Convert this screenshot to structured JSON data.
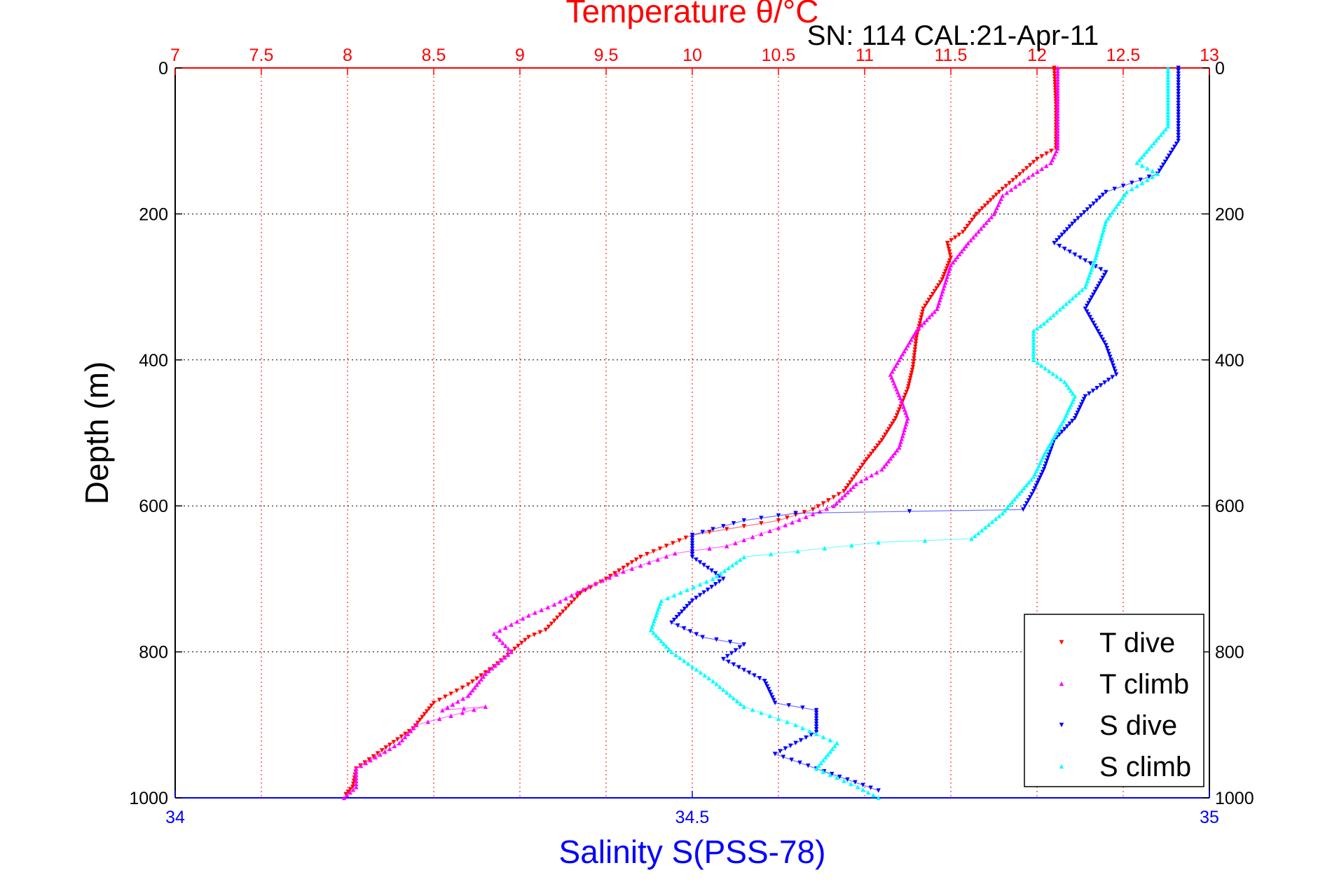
{
  "chart_data": {
    "type": "scatter",
    "title": "Temperature θ/°C",
    "subtitle": "SN: 114  CAL:21-Apr-11",
    "xlabel_top": "Temperature θ/°C",
    "xlabel_bottom": "Salinity S(PSS-78)",
    "ylabel": "Depth (m)",
    "ylim": [
      1000,
      0
    ],
    "xlim_top": [
      7,
      13
    ],
    "xlim_bottom": [
      34,
      35
    ],
    "y_ticks": [
      "0",
      "200",
      "400",
      "600",
      "800",
      "1000"
    ],
    "y_tick_values": [
      0,
      200,
      400,
      600,
      800,
      1000
    ],
    "x_top_ticks": [
      "7",
      "7.5",
      "8",
      "8.5",
      "9",
      "9.5",
      "10",
      "10.5",
      "11",
      "11.5",
      "12",
      "12.5",
      "13"
    ],
    "x_top_tick_values": [
      7,
      7.5,
      8,
      8.5,
      9,
      9.5,
      10,
      10.5,
      11,
      11.5,
      12,
      12.5,
      13
    ],
    "x_bottom_ticks": [
      "34",
      "34.5",
      "35"
    ],
    "x_bottom_tick_values": [
      34,
      34.5,
      35
    ],
    "grid": true,
    "legend_position": "bottom-right",
    "series": [
      {
        "name": "T dive",
        "axis": "top",
        "color": "#ff0000",
        "marker": "triangle-down",
        "points": [
          [
            12.1,
            0
          ],
          [
            12.11,
            50
          ],
          [
            12.11,
            110
          ],
          [
            12.0,
            125
          ],
          [
            11.88,
            150
          ],
          [
            11.78,
            170
          ],
          [
            11.65,
            200
          ],
          [
            11.57,
            225
          ],
          [
            11.48,
            240
          ],
          [
            11.5,
            260
          ],
          [
            11.45,
            290
          ],
          [
            11.34,
            330
          ],
          [
            11.3,
            370
          ],
          [
            11.28,
            410
          ],
          [
            11.25,
            440
          ],
          [
            11.18,
            480
          ],
          [
            11.1,
            510
          ],
          [
            11.0,
            540
          ],
          [
            10.88,
            580
          ],
          [
            10.7,
            605
          ],
          [
            10.5,
            620
          ],
          [
            10.3,
            628
          ],
          [
            10.0,
            640
          ],
          [
            9.7,
            670
          ],
          [
            9.5,
            700
          ],
          [
            9.35,
            720
          ],
          [
            9.25,
            745
          ],
          [
            9.15,
            770
          ],
          [
            9.05,
            780
          ],
          [
            8.95,
            800
          ],
          [
            8.85,
            820
          ],
          [
            8.7,
            845
          ],
          [
            8.5,
            870
          ],
          [
            8.38,
            905
          ],
          [
            8.2,
            935
          ],
          [
            8.05,
            960
          ],
          [
            8.03,
            985
          ],
          [
            7.99,
            995
          ]
        ]
      },
      {
        "name": "T climb",
        "axis": "top",
        "color": "#ff00ff",
        "marker": "triangle-up",
        "points": [
          [
            12.12,
            0
          ],
          [
            12.12,
            50
          ],
          [
            12.12,
            110
          ],
          [
            12.08,
            130
          ],
          [
            11.95,
            150
          ],
          [
            11.8,
            175
          ],
          [
            11.75,
            200
          ],
          [
            11.6,
            240
          ],
          [
            11.5,
            270
          ],
          [
            11.42,
            330
          ],
          [
            11.3,
            360
          ],
          [
            11.25,
            380
          ],
          [
            11.15,
            420
          ],
          [
            11.22,
            460
          ],
          [
            11.25,
            480
          ],
          [
            11.2,
            520
          ],
          [
            11.1,
            550
          ],
          [
            10.95,
            570
          ],
          [
            10.82,
            600
          ],
          [
            10.5,
            630
          ],
          [
            10.2,
            655
          ],
          [
            9.9,
            665
          ],
          [
            9.6,
            690
          ],
          [
            9.4,
            710
          ],
          [
            9.2,
            735
          ],
          [
            9.05,
            750
          ],
          [
            8.85,
            775
          ],
          [
            8.95,
            800
          ],
          [
            8.8,
            830
          ],
          [
            8.7,
            860
          ],
          [
            8.55,
            880
          ],
          [
            8.8,
            875
          ],
          [
            8.4,
            900
          ],
          [
            8.3,
            925
          ],
          [
            8.05,
            960
          ],
          [
            8.05,
            985
          ],
          [
            7.98,
            1000
          ]
        ]
      },
      {
        "name": "S dive",
        "axis": "bottom",
        "color": "#0000ff",
        "marker": "triangle-down",
        "points": [
          [
            34.97,
            0
          ],
          [
            34.97,
            100
          ],
          [
            34.95,
            145
          ],
          [
            34.9,
            170
          ],
          [
            34.87,
            210
          ],
          [
            34.85,
            240
          ],
          [
            34.9,
            280
          ],
          [
            34.88,
            330
          ],
          [
            34.9,
            380
          ],
          [
            34.91,
            420
          ],
          [
            34.88,
            450
          ],
          [
            34.87,
            480
          ],
          [
            34.85,
            510
          ],
          [
            34.84,
            550
          ],
          [
            34.83,
            580
          ],
          [
            34.82,
            605
          ],
          [
            34.6,
            610
          ],
          [
            34.55,
            620
          ],
          [
            34.5,
            640
          ],
          [
            34.5,
            670
          ],
          [
            34.53,
            700
          ],
          [
            34.5,
            730
          ],
          [
            34.48,
            760
          ],
          [
            34.51,
            780
          ],
          [
            34.55,
            790
          ],
          [
            34.53,
            810
          ],
          [
            34.57,
            840
          ],
          [
            34.58,
            870
          ],
          [
            34.62,
            880
          ],
          [
            34.62,
            910
          ],
          [
            34.58,
            940
          ],
          [
            34.62,
            960
          ],
          [
            34.68,
            990
          ]
        ]
      },
      {
        "name": "S climb",
        "axis": "bottom",
        "color": "#00ffff",
        "marker": "triangle-up",
        "points": [
          [
            34.96,
            0
          ],
          [
            34.96,
            80
          ],
          [
            34.93,
            130
          ],
          [
            34.95,
            145
          ],
          [
            34.92,
            170
          ],
          [
            34.9,
            210
          ],
          [
            34.89,
            260
          ],
          [
            34.88,
            300
          ],
          [
            34.84,
            350
          ],
          [
            34.83,
            360
          ],
          [
            34.83,
            400
          ],
          [
            34.86,
            430
          ],
          [
            34.87,
            450
          ],
          [
            34.86,
            480
          ],
          [
            34.84,
            530
          ],
          [
            34.83,
            560
          ],
          [
            34.8,
            610
          ],
          [
            34.77,
            645
          ],
          [
            34.68,
            650
          ],
          [
            34.55,
            670
          ],
          [
            34.52,
            700
          ],
          [
            34.47,
            730
          ],
          [
            34.46,
            770
          ],
          [
            34.48,
            800
          ],
          [
            34.52,
            840
          ],
          [
            34.55,
            875
          ],
          [
            34.6,
            900
          ],
          [
            34.64,
            925
          ],
          [
            34.62,
            960
          ],
          [
            34.66,
            985
          ],
          [
            34.68,
            1000
          ]
        ]
      }
    ]
  }
}
